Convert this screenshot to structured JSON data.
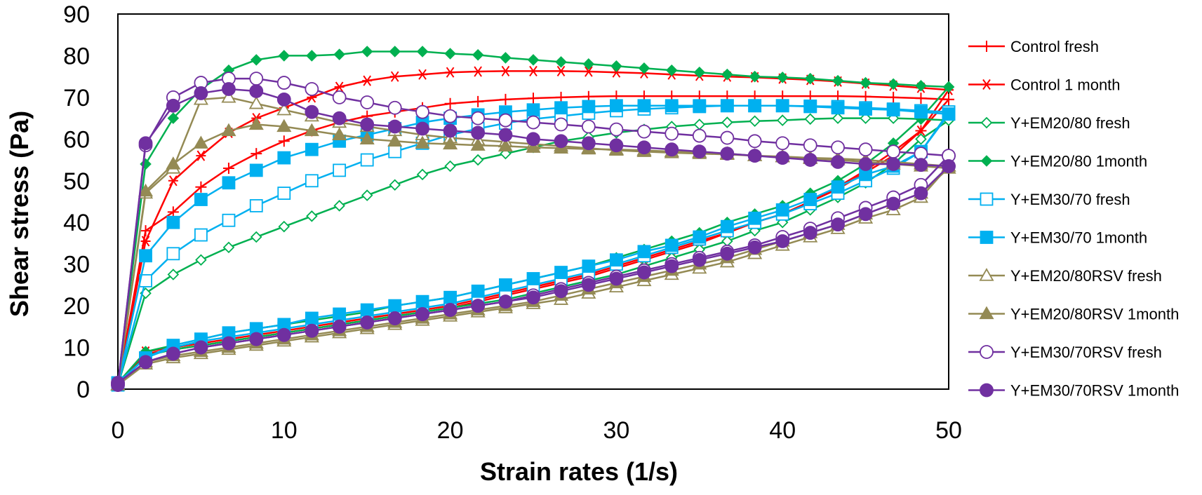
{
  "chart_data": {
    "type": "line",
    "title": "",
    "xlabel": "Strain rates (1/s)",
    "ylabel": "Shear stress (Pa)",
    "xlim": [
      0,
      50
    ],
    "ylim": [
      0,
      90
    ],
    "x_ticks": [
      "0",
      "10",
      "20",
      "30",
      "40",
      "50"
    ],
    "y_ticks": [
      "0",
      "10",
      "20",
      "30",
      "40",
      "50",
      "60",
      "70",
      "80",
      "90"
    ],
    "grid": false,
    "legend_position": "right",
    "x": [
      0,
      1.67,
      3.33,
      5,
      6.67,
      8.33,
      10,
      11.67,
      13.33,
      15,
      16.67,
      18.33,
      20,
      21.67,
      23.33,
      25,
      26.67,
      28.33,
      30,
      31.67,
      33.33,
      35,
      36.67,
      38.33,
      40,
      41.67,
      43.33,
      45,
      46.67,
      48.33,
      50
    ],
    "x_down": [
      50,
      48.33,
      46.67,
      45,
      43.33,
      41.67,
      40,
      38.33,
      36.67,
      35,
      33.33,
      31.67,
      30,
      28.33,
      26.67,
      25,
      23.33,
      21.67,
      20,
      18.33,
      16.67,
      15,
      13.33,
      11.67,
      10,
      8.33,
      6.67,
      5,
      3.33,
      1.67,
      0
    ],
    "series": [
      {
        "name": "Control fresh",
        "color": "#ff0000",
        "marker": "plus",
        "up": [
          1,
          38,
          42.5,
          48.5,
          53,
          56.5,
          59.5,
          62,
          64,
          65.5,
          66.5,
          67.5,
          68.5,
          69,
          69.5,
          69.8,
          70,
          70.2,
          70.3,
          70.3,
          70.3,
          70.3,
          70.3,
          70.3,
          70.3,
          70.3,
          70.3,
          70.2,
          70,
          69.8,
          69.5
        ],
        "down": [
          69.5,
          62,
          56,
          52,
          48,
          45,
          42,
          40,
          37.5,
          35,
          33,
          31,
          29,
          27,
          25.5,
          24,
          22.5,
          21,
          19.5,
          18.5,
          17.5,
          16.5,
          15.5,
          14.5,
          13.5,
          12.5,
          11.5,
          10.5,
          9.5,
          8.5,
          1
        ]
      },
      {
        "name": "Control 1 month",
        "color": "#ff0000",
        "marker": "asterisk",
        "up": [
          1,
          35.5,
          50,
          56,
          61.5,
          65,
          67.5,
          70,
          72.5,
          74,
          75,
          75.5,
          76,
          76.2,
          76.3,
          76.3,
          76.3,
          76.2,
          76,
          75.8,
          75.5,
          75.2,
          75,
          74.8,
          74.5,
          74.2,
          73.8,
          73.3,
          72.8,
          72.3,
          71.8
        ],
        "down": [
          71.8,
          62,
          57,
          52.5,
          48.5,
          45,
          42,
          40,
          37.5,
          35.5,
          33.5,
          31.5,
          29.5,
          27.5,
          26,
          24.5,
          23,
          21.5,
          20,
          19,
          18,
          17,
          16,
          15,
          14,
          13,
          12,
          11,
          10,
          9,
          1
        ]
      },
      {
        "name": "Y+EM20/80 fresh",
        "color": "#00b050",
        "marker": "diamond-open",
        "up": [
          1,
          23,
          27.5,
          31,
          34,
          36.5,
          39,
          41.5,
          44,
          46.5,
          49,
          51.5,
          53.5,
          55,
          56.5,
          58,
          59.5,
          60.5,
          61.5,
          62.3,
          63,
          63.5,
          64,
          64.3,
          64.5,
          64.8,
          65,
          65,
          65,
          64.8,
          64.5
        ],
        "down": [
          64.5,
          60,
          54,
          49.5,
          46,
          43,
          40,
          38,
          35.5,
          33.5,
          31.5,
          29.5,
          27.5,
          26,
          24.5,
          23,
          21.5,
          20.5,
          19.5,
          18.5,
          17.5,
          16.5,
          15.5,
          14.5,
          13.5,
          12.5,
          11.5,
          10.5,
          9.5,
          8,
          1
        ]
      },
      {
        "name": "Y+EM20/80 1month",
        "color": "#00b050",
        "marker": "diamond",
        "up": [
          1,
          54,
          65,
          72,
          76.5,
          79,
          80,
          80,
          80.3,
          81,
          81,
          81,
          80.5,
          80.2,
          79.5,
          79,
          78.5,
          78,
          77.5,
          77,
          76.5,
          76,
          75.5,
          75,
          74.8,
          74.5,
          74,
          73.5,
          73.2,
          72.8,
          72.5
        ],
        "down": [
          72.5,
          65,
          59,
          54,
          50,
          47,
          44,
          42,
          40,
          37.5,
          35.5,
          33.5,
          31.5,
          29.5,
          28,
          26.5,
          25,
          23.5,
          22,
          21,
          20,
          18.5,
          17.5,
          16.5,
          15.5,
          14.5,
          13.5,
          12,
          10.5,
          9,
          1.5
        ]
      },
      {
        "name": "Y+EM30/70 fresh",
        "color": "#00b0f0",
        "marker": "square-open",
        "up": [
          1,
          26,
          32.5,
          37,
          40.5,
          44,
          47,
          50,
          52.5,
          55,
          57,
          59,
          61,
          62.5,
          63.8,
          64.8,
          65.5,
          66.2,
          66.8,
          67.2,
          67.5,
          67.8,
          68,
          68,
          68,
          67.9,
          67.8,
          67.5,
          67.2,
          66.8,
          66.5
        ],
        "down": [
          66.5,
          57,
          53,
          50,
          47,
          44.5,
          42,
          40,
          38,
          36,
          34,
          32,
          30,
          28,
          26.5,
          25,
          23.5,
          22,
          20.5,
          19.5,
          18.5,
          17.5,
          16.5,
          15.5,
          14.5,
          13.5,
          12.5,
          11.5,
          10,
          7.5,
          1.5
        ]
      },
      {
        "name": "Y+EM30/70 1month",
        "color": "#00b0f0",
        "marker": "square",
        "up": [
          1,
          32,
          40,
          45.5,
          49.5,
          52.5,
          55.5,
          57.5,
          59.5,
          61,
          62.5,
          64,
          65,
          65.8,
          66.5,
          67,
          67.5,
          67.8,
          68,
          68,
          68,
          68,
          68,
          68,
          68,
          67.8,
          67.5,
          67.2,
          67,
          66.5,
          66
        ],
        "down": [
          66,
          57,
          53.5,
          51.5,
          48.5,
          45.5,
          43,
          41,
          39,
          36.5,
          34.5,
          33,
          31,
          29.5,
          28,
          26.5,
          25,
          23.5,
          22,
          21,
          20,
          19,
          18,
          17,
          15.5,
          14.5,
          13.5,
          12,
          10.5,
          7.5,
          1.5
        ]
      },
      {
        "name": "Y+EM20/80RSV fresh",
        "color": "#948a54",
        "marker": "triangle-open",
        "up": [
          1,
          47,
          53,
          69.5,
          70,
          68.5,
          67,
          65.5,
          64,
          63,
          62,
          61,
          60.3,
          59.8,
          59.3,
          58.8,
          58.3,
          57.8,
          57.3,
          57,
          56.7,
          56.5,
          56.3,
          56,
          55.8,
          55.5,
          55.3,
          55,
          54.5,
          54,
          53.5
        ],
        "down": [
          53.5,
          46,
          43,
          41,
          38.5,
          36.5,
          34.5,
          32.5,
          30.5,
          29,
          27.5,
          26,
          24.5,
          23,
          21.5,
          20.5,
          19.5,
          18.5,
          17.5,
          16.5,
          15.5,
          14.5,
          13.5,
          12.5,
          11.5,
          10.5,
          9.5,
          8.5,
          7.5,
          6,
          1
        ]
      },
      {
        "name": "Y+EM20/80RSV 1month",
        "color": "#948a54",
        "marker": "triangle",
        "up": [
          1,
          47.5,
          54,
          59,
          62,
          63.5,
          63,
          62,
          61,
          60,
          59.5,
          59,
          58.8,
          58.5,
          58.3,
          58,
          57.8,
          57.6,
          57.5,
          57.3,
          57,
          56.8,
          56.5,
          56,
          55.7,
          55.3,
          55,
          54.5,
          54,
          53.5,
          53
        ],
        "down": [
          53,
          47,
          44.5,
          42,
          39.5,
          37.5,
          35.5,
          33.5,
          31.5,
          30,
          28.5,
          27,
          25.5,
          24,
          22.5,
          21,
          20,
          19,
          18,
          17,
          16,
          15,
          14,
          13,
          12,
          11,
          10,
          9,
          8,
          6.5,
          1
        ]
      },
      {
        "name": "Y+EM30/70RSV fresh",
        "color": "#7030a0",
        "marker": "circle-open",
        "up": [
          1,
          58.5,
          70,
          73.5,
          74.5,
          74.5,
          73.5,
          72,
          70,
          68.8,
          67.5,
          66.5,
          65.5,
          65,
          64.5,
          64,
          63.5,
          63,
          62.3,
          61.8,
          61.3,
          60.8,
          60.3,
          59.5,
          59,
          58.5,
          58,
          57.5,
          57,
          56.5,
          56
        ],
        "down": [
          56,
          49,
          46,
          43.5,
          41,
          38.5,
          36.5,
          34.5,
          33,
          31.5,
          30,
          28.5,
          27,
          25.5,
          24,
          22.5,
          21,
          20,
          19,
          18,
          17,
          16,
          15,
          14,
          13,
          12,
          11,
          10,
          8.5,
          6.5,
          1.5
        ]
      },
      {
        "name": "Y+EM30/70RSV 1month",
        "color": "#7030a0",
        "marker": "circle",
        "up": [
          1,
          59,
          68,
          71,
          72,
          71.5,
          69.5,
          66.5,
          65,
          63.5,
          63,
          62.5,
          62,
          61.5,
          61,
          60,
          59.5,
          59,
          58.5,
          58,
          57.5,
          57,
          56.5,
          56,
          55.5,
          55,
          54.5,
          54,
          54,
          53.8,
          53.5
        ],
        "down": [
          53.5,
          47,
          44.5,
          42,
          39.5,
          37.5,
          35.5,
          34,
          32.5,
          31,
          29.5,
          28,
          26.5,
          25,
          23.5,
          22,
          21,
          20,
          19,
          18,
          17,
          16,
          15,
          14,
          13,
          12,
          11,
          10,
          8.5,
          6.5,
          1.5
        ]
      }
    ]
  }
}
